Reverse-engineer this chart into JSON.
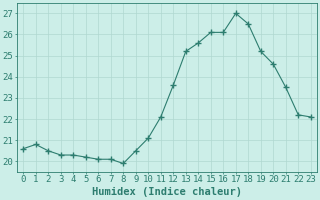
{
  "x": [
    0,
    1,
    2,
    3,
    4,
    5,
    6,
    7,
    8,
    9,
    10,
    11,
    12,
    13,
    14,
    15,
    16,
    17,
    18,
    19,
    20,
    21,
    22,
    23
  ],
  "y": [
    20.6,
    20.8,
    20.5,
    20.3,
    20.3,
    20.2,
    20.1,
    20.1,
    19.9,
    20.5,
    21.1,
    22.1,
    23.6,
    25.2,
    25.6,
    26.1,
    26.1,
    27.0,
    26.5,
    25.2,
    24.6,
    23.5,
    22.2,
    22.1
  ],
  "line_color": "#2d7d6f",
  "marker": "+",
  "marker_size": 4,
  "bg_color": "#cceee8",
  "grid_color": "#b0d8d0",
  "xlabel": "Humidex (Indice chaleur)",
  "ylim": [
    19.5,
    27.5
  ],
  "yticks": [
    20,
    21,
    22,
    23,
    24,
    25,
    26,
    27
  ],
  "xticks": [
    0,
    1,
    2,
    3,
    4,
    5,
    6,
    7,
    8,
    9,
    10,
    11,
    12,
    13,
    14,
    15,
    16,
    17,
    18,
    19,
    20,
    21,
    22,
    23
  ],
  "tick_fontsize": 6.5,
  "xlabel_fontsize": 7.5
}
